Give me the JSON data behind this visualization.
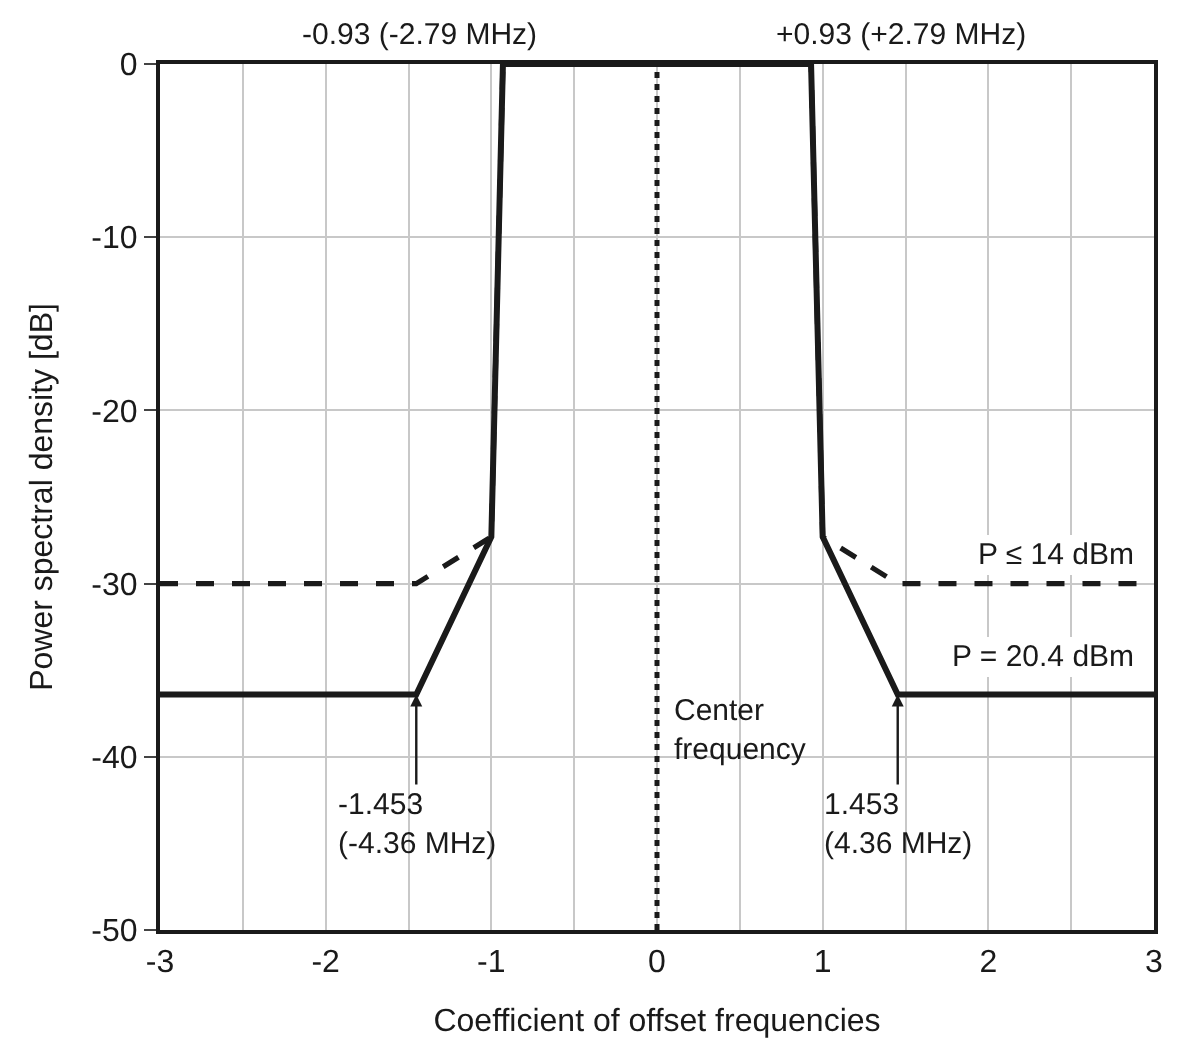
{
  "chart_data": {
    "type": "line",
    "xlabel": "Coefficient of offset frequencies",
    "ylabel": "Power spectral density [dB]",
    "series": [
      {
        "name": "P ≤ 14 dBm",
        "color": "#1a1a1a",
        "line_style": "dashed",
        "x": [
          -3,
          -1.453,
          -1,
          -0.93,
          0.93,
          1,
          1.453,
          3
        ],
        "values": [
          -30,
          -30,
          -27.3,
          0,
          0,
          -27.3,
          -30,
          -30
        ]
      },
      {
        "name": "P = 20.4 dBm",
        "color": "#1a1a1a",
        "line_style": "solid",
        "x": [
          -3,
          -1.453,
          -1,
          -0.93,
          0.93,
          1,
          1.453,
          3
        ],
        "values": [
          -36.4,
          -36.4,
          -27.3,
          0,
          0,
          -27.3,
          -36.4,
          -36.4
        ]
      }
    ],
    "xlim": [
      -3,
      3
    ],
    "xticks": [
      -3,
      {
        "value": -2.5,
        "label": null
      },
      -2,
      {
        "value": -1.5,
        "label": null
      },
      -1,
      {
        "value": -0.5,
        "label": null
      },
      0,
      {
        "value": 0.5,
        "label": null
      },
      1,
      {
        "value": 1.5,
        "label": null
      },
      2,
      {
        "value": 2.5,
        "label": null
      },
      3
    ],
    "ylim": [
      -50,
      0
    ],
    "yticks": [
      -50,
      -40,
      -30,
      -20,
      -10,
      0
    ],
    "grid": true,
    "legend": false,
    "marker": "none",
    "ref_lines": [
      {
        "axis": "x",
        "value": 0,
        "label": "Center\nfrequency",
        "line_style": "dotted",
        "color": "#1a1a1a"
      }
    ],
    "annotations": [
      {
        "text": "-0.93 (-2.79 MHz)",
        "x": -0.93,
        "y": 0
      },
      {
        "text": "+0.93 (+2.79 MHz)",
        "x": 0.93,
        "y": 0
      },
      {
        "text": "-1.453\n(-4.36 MHz)",
        "x": -1.453,
        "y": -36.4
      },
      {
        "text": "1.453\n(4.36 MHz)",
        "x": 1.453,
        "y": -36.4
      }
    ]
  }
}
